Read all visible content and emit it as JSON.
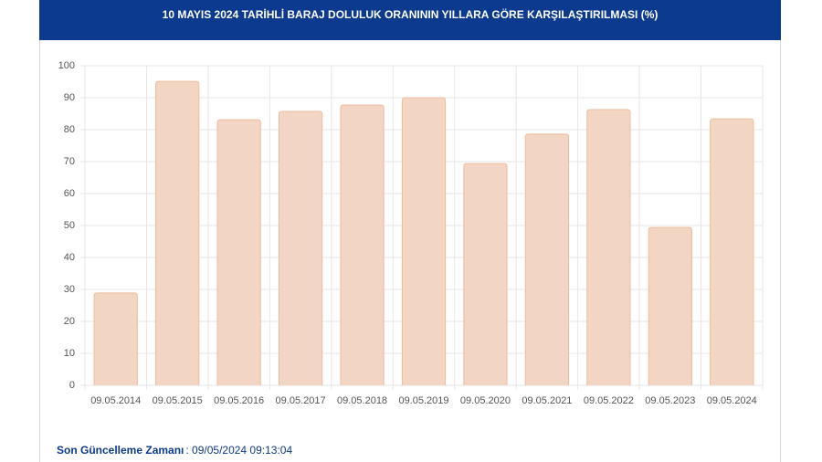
{
  "chart_data": {
    "type": "bar",
    "title": "10 MAYIS 2024 TARİHLİ BARAJ DOLULUK ORANININ YILLARA GÖRE KARŞILAŞTIRILMASI (%)",
    "categories": [
      "09.05.2014",
      "09.05.2015",
      "09.05.2016",
      "09.05.2017",
      "09.05.2018",
      "09.05.2019",
      "09.05.2020",
      "09.05.2021",
      "09.05.2022",
      "09.05.2023",
      "09.05.2024"
    ],
    "values": [
      28.9,
      95.1,
      83.1,
      85.7,
      87.7,
      90.0,
      69.4,
      78.6,
      86.3,
      49.4,
      83.4
    ],
    "color": "#f3d5c3",
    "ylim": [
      0,
      100
    ],
    "yticks": [
      0,
      10,
      20,
      30,
      40,
      50,
      60,
      70,
      80,
      90,
      100
    ],
    "grid": true
  },
  "footer": {
    "label": "Son Güncelleme Zamanı",
    "value": ": 09/05/2024 09:13:04"
  }
}
